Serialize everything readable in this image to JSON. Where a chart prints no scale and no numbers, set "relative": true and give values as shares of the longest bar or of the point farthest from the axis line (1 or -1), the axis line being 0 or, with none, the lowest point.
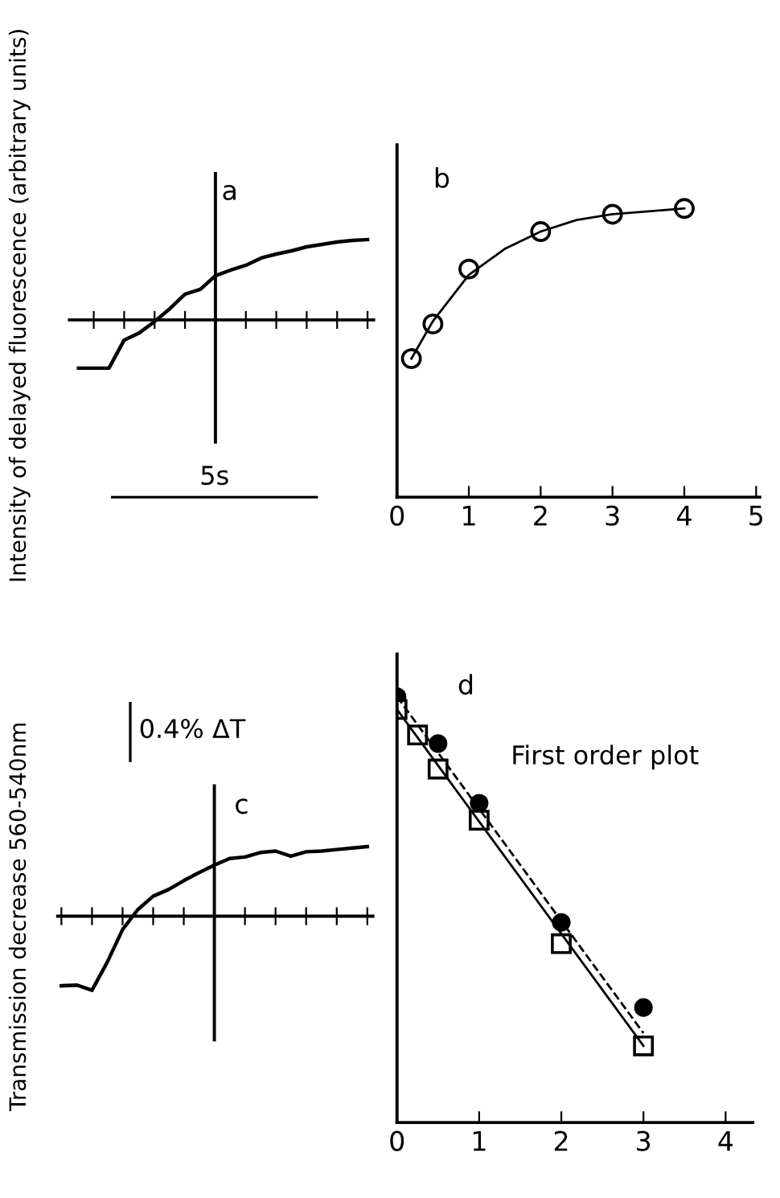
{
  "chart_data": [
    {
      "type": "line",
      "title": "a",
      "ylabel": "Intensity of delayed fluorescence (arbitrary units)",
      "relative": true,
      "categories": [
        null,
        null,
        null,
        null,
        null,
        null,
        null,
        null,
        null,
        null,
        null,
        null,
        null,
        null,
        null,
        null,
        null,
        null,
        null,
        null
      ],
      "tick_labels": false,
      "annotations": [
        "5s"
      ],
      "series": [
        {
          "color": "#000000",
          "values": [
            -0.6,
            -0.6,
            -0.6,
            -0.25,
            -0.16,
            -0.02,
            0.14,
            0.32,
            0.38,
            0.55,
            0.62,
            0.68,
            0.77,
            0.82,
            0.86,
            0.91,
            0.94,
            0.97,
            0.99,
            1.0
          ]
        }
      ]
    },
    {
      "type": "scatter",
      "title": "b",
      "relative": true,
      "xlim": [
        0,
        5.05
      ],
      "xticks": [
        0,
        1,
        2,
        3,
        4,
        5
      ],
      "tick_labels": "x",
      "series": [
        {
          "type": "scatter",
          "marker": "circle",
          "color": "#000000",
          "x": [
            0.2,
            0.5,
            1,
            2,
            3,
            4
          ],
          "values": [
            0.48,
            0.6,
            0.79,
            0.92,
            0.98,
            1.0
          ]
        },
        {
          "type": "line",
          "color": "#000000",
          "x": [
            0.2,
            0.5,
            1,
            1.5,
            2,
            2.5,
            3,
            3.5,
            4
          ],
          "values": [
            0.48,
            0.61,
            0.77,
            0.86,
            0.92,
            0.96,
            0.98,
            0.99,
            1.0
          ]
        }
      ]
    },
    {
      "type": "line",
      "title": "c",
      "ylabel": "Transmission decrease 560-540nm",
      "relative": true,
      "categories": [
        null,
        null,
        null,
        null,
        null,
        null,
        null,
        null,
        null,
        null,
        null,
        null,
        null,
        null,
        null,
        null,
        null,
        null,
        null,
        null,
        null
      ],
      "tick_labels": false,
      "annotations": [
        "0.4% ΔT"
      ],
      "series": [
        {
          "color": "#000000",
          "values": [
            -0.94,
            -0.93,
            -1.0,
            -0.62,
            -0.18,
            0.09,
            0.27,
            0.36,
            0.48,
            0.59,
            0.69,
            0.78,
            0.8,
            0.86,
            0.88,
            0.81,
            0.87,
            0.88,
            0.9,
            0.92,
            0.94
          ]
        }
      ]
    },
    {
      "type": "scatter",
      "title": "d",
      "relative": true,
      "xlim": [
        0,
        4.33
      ],
      "xticks": [
        0,
        1,
        2,
        3,
        4
      ],
      "tick_labels": "x",
      "annotations": [
        "First order plot"
      ],
      "series": [
        {
          "type": "scatter",
          "marker": "circle",
          "color": "#000000",
          "x": [
            0,
            0.5,
            1,
            2,
            3
          ],
          "values": [
            1.0,
            0.89,
            0.75,
            0.47,
            0.27
          ]
        },
        {
          "type": "scatter",
          "marker": "square",
          "color": "#000000",
          "x": [
            0,
            0.25,
            0.5,
            1,
            2,
            3
          ],
          "values": [
            0.97,
            0.91,
            0.83,
            0.71,
            0.42,
            0.18
          ]
        },
        {
          "type": "line",
          "line_style": "dashed",
          "color": "#000000",
          "x": [
            0,
            3
          ],
          "values": [
            1.0,
            0.21
          ]
        },
        {
          "type": "line",
          "line_style": "solid",
          "color": "#000000",
          "x": [
            0,
            3
          ],
          "values": [
            0.97,
            0.18
          ]
        }
      ]
    }
  ]
}
